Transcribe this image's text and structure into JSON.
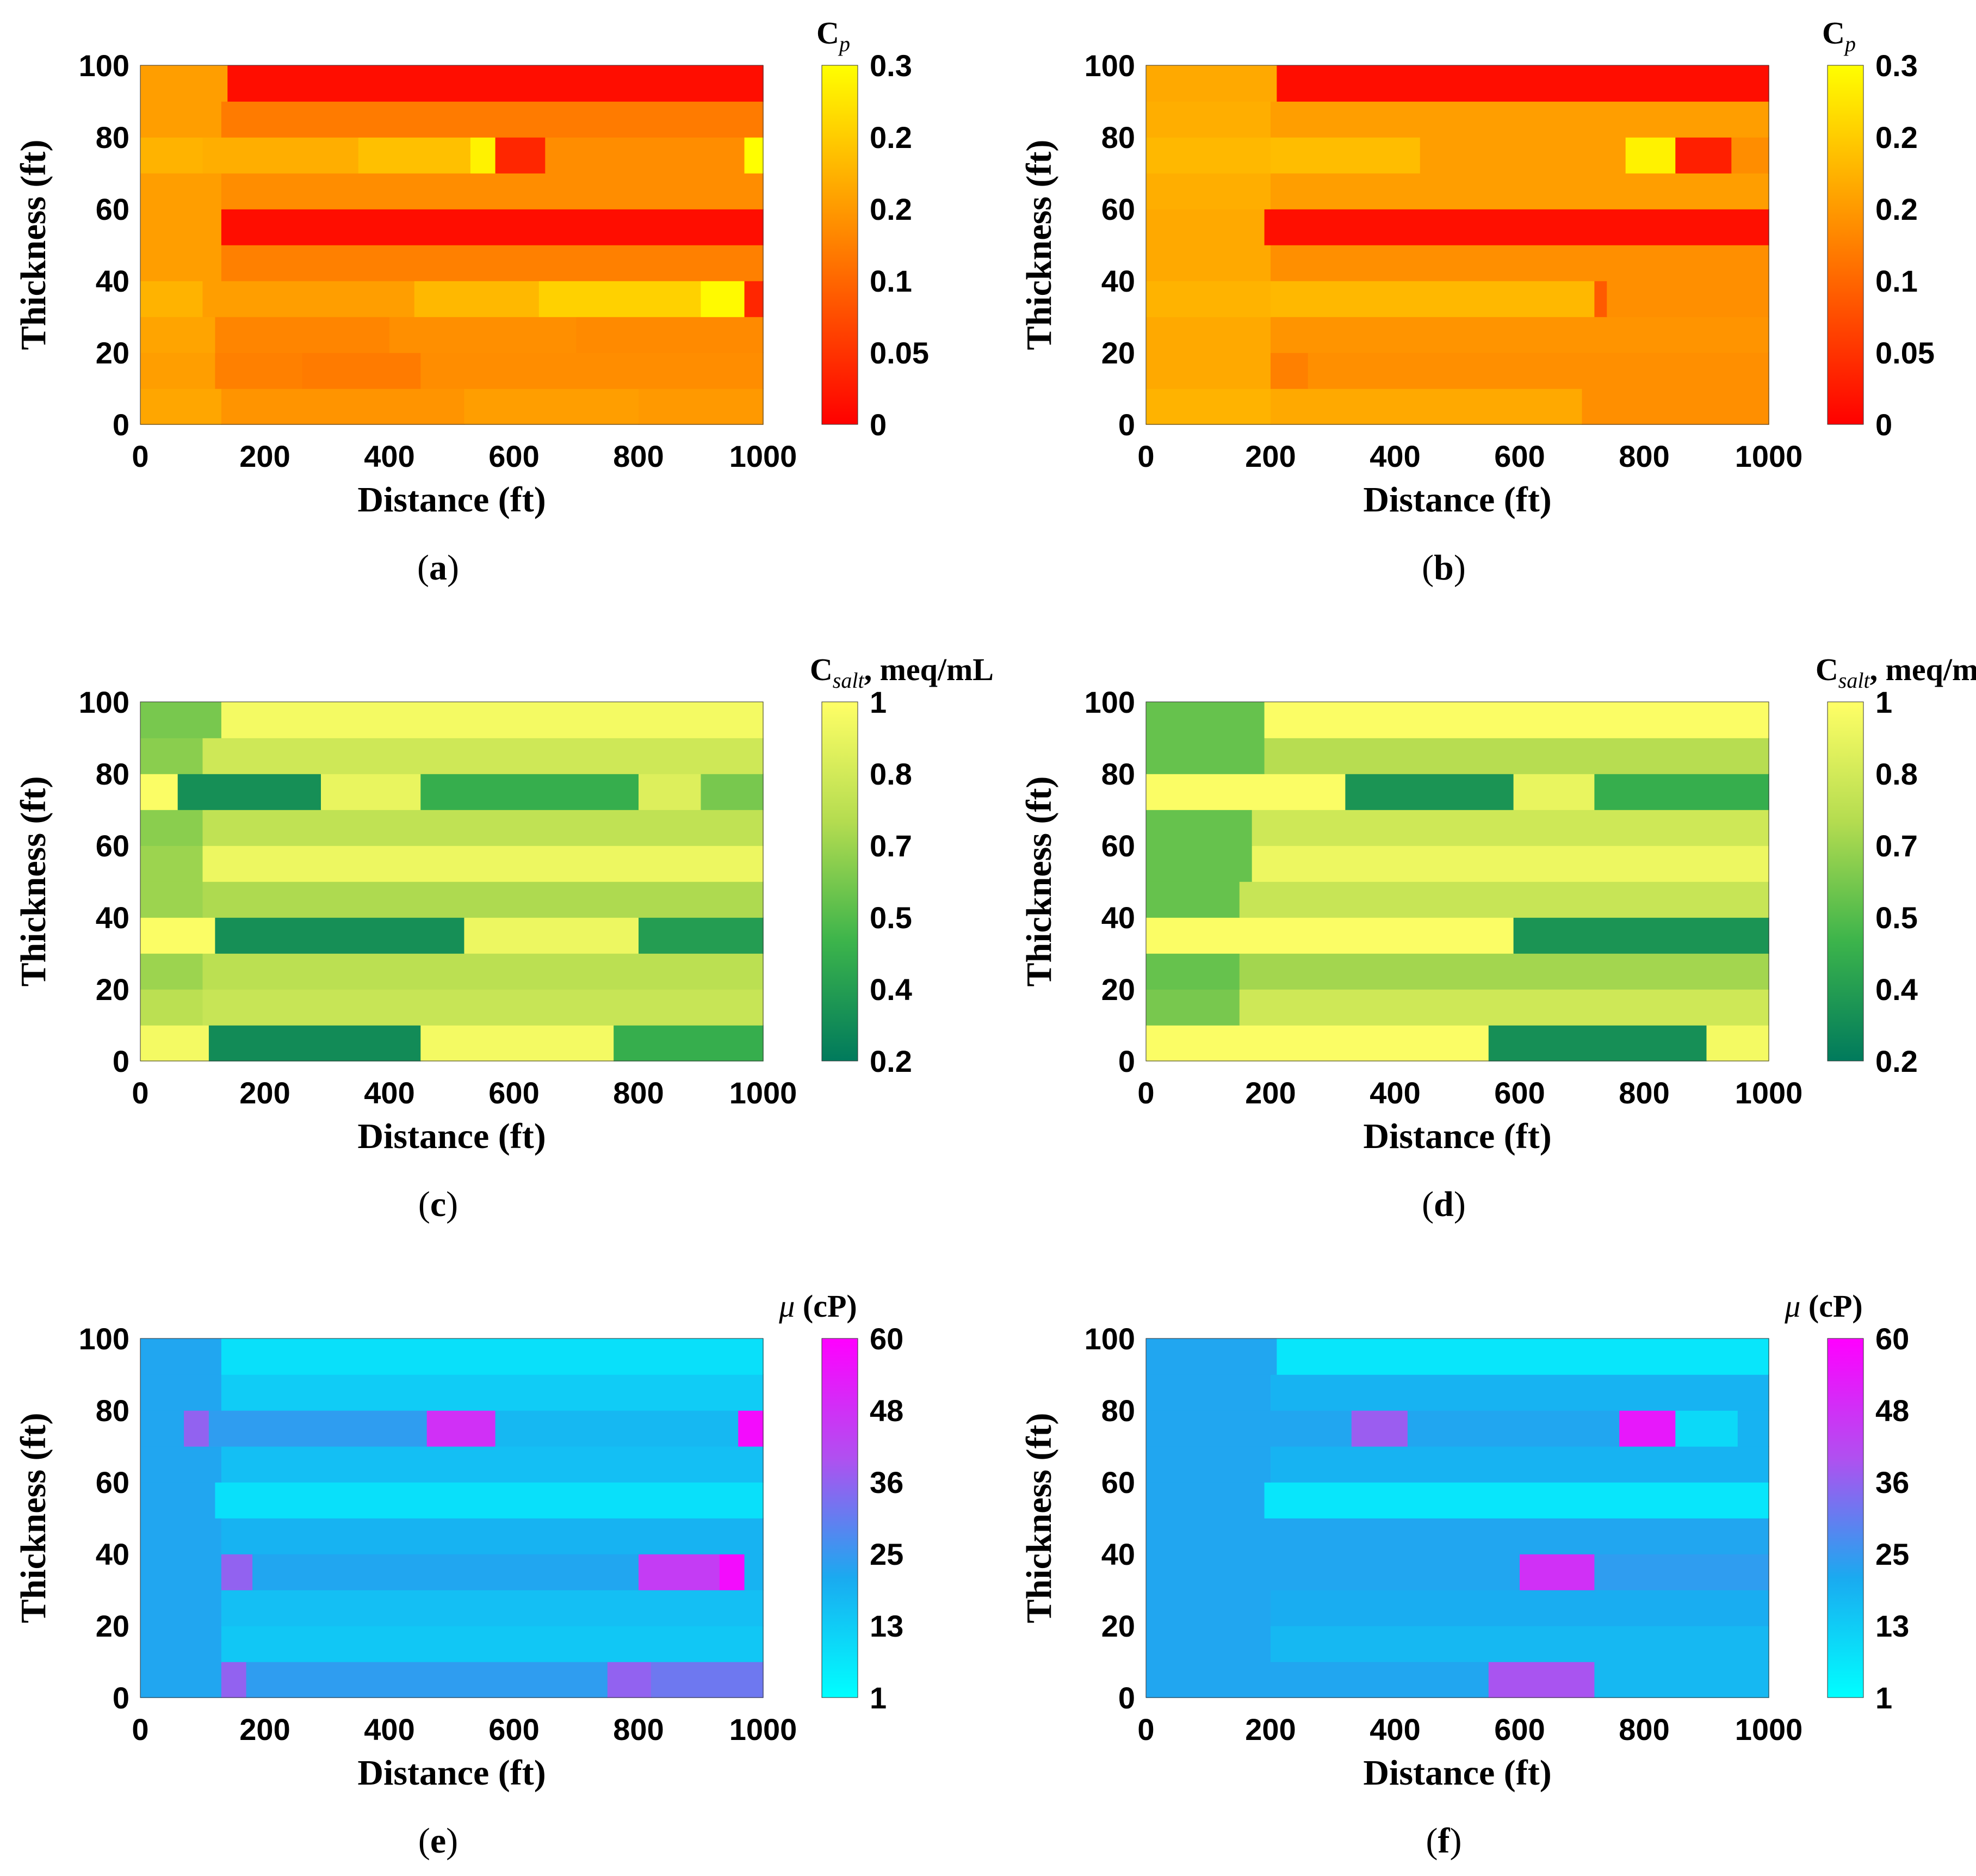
{
  "figure": {
    "panel_count": 6
  },
  "palettes": {
    "cp": [
      "#ff0000",
      "#ff8000",
      "#ffff00"
    ],
    "salt": [
      "#007a5c",
      "#3cb44b",
      "#b4dc50",
      "#ffff66"
    ],
    "mu": [
      "#00ffff",
      "#1aaaf0",
      "#b050f0",
      "#ff00ff"
    ]
  },
  "chart_data": [
    {
      "panel": "a",
      "type": "heatmap",
      "caption": "a",
      "xlabel": "Distance (ft)",
      "ylabel": "Thickness (ft)",
      "xlim": [
        0,
        1000
      ],
      "ylim": [
        0,
        100
      ],
      "xticks": [
        "0",
        "200",
        "400",
        "600",
        "800",
        "1000"
      ],
      "yticks": [
        "0",
        "20",
        "40",
        "60",
        "80",
        "100"
      ],
      "colorbar": {
        "title_main": "C",
        "title_sub": "p",
        "title_tail": "",
        "ticks": [
          "0",
          "0.05",
          "0.1",
          "0.2",
          "0.2",
          "0.3"
        ],
        "palette": "cp"
      },
      "layers": [
        [
          [
            0,
            130,
            0.65
          ],
          [
            130,
            520,
            0.58
          ],
          [
            520,
            800,
            0.62
          ],
          [
            800,
            1000,
            0.6
          ]
        ],
        [
          [
            0,
            120,
            0.62
          ],
          [
            120,
            260,
            0.5
          ],
          [
            260,
            450,
            0.48
          ],
          [
            450,
            1000,
            0.55
          ]
        ],
        [
          [
            0,
            120,
            0.64
          ],
          [
            120,
            400,
            0.52
          ],
          [
            400,
            700,
            0.56
          ],
          [
            700,
            1000,
            0.54
          ]
        ],
        [
          [
            0,
            100,
            0.7
          ],
          [
            100,
            440,
            0.62
          ],
          [
            440,
            640,
            0.72
          ],
          [
            640,
            900,
            0.82
          ],
          [
            900,
            970,
            0.98
          ],
          [
            970,
            1000,
            0.15
          ]
        ],
        [
          [
            0,
            130,
            0.62
          ],
          [
            130,
            1000,
            0.5
          ]
        ],
        [
          [
            0,
            130,
            0.62
          ],
          [
            130,
            1000,
            0.05
          ]
        ],
        [
          [
            0,
            130,
            0.62
          ],
          [
            130,
            1000,
            0.55
          ]
        ],
        [
          [
            0,
            100,
            0.7
          ],
          [
            100,
            350,
            0.68
          ],
          [
            350,
            530,
            0.75
          ],
          [
            530,
            570,
            0.95
          ],
          [
            570,
            650,
            0.15
          ],
          [
            650,
            970,
            0.55
          ],
          [
            970,
            1000,
            1.0
          ]
        ],
        [
          [
            0,
            130,
            0.62
          ],
          [
            130,
            1000,
            0.48
          ]
        ],
        [
          [
            0,
            140,
            0.62
          ],
          [
            140,
            1000,
            0.05
          ]
        ]
      ]
    },
    {
      "panel": "b",
      "type": "heatmap",
      "caption": "b",
      "xlabel": "Distance (ft)",
      "ylabel": "Thickness (ft)",
      "xlim": [
        0,
        1000
      ],
      "ylim": [
        0,
        100
      ],
      "xticks": [
        "0",
        "200",
        "400",
        "600",
        "800",
        "1000"
      ],
      "yticks": [
        "0",
        "20",
        "40",
        "60",
        "80",
        "100"
      ],
      "colorbar": {
        "title_main": "C",
        "title_sub": "p",
        "title_tail": "",
        "ticks": [
          "0",
          "0.05",
          "0.1",
          "0.2",
          "0.2",
          "0.3"
        ],
        "palette": "cp"
      },
      "layers": [
        [
          [
            0,
            200,
            0.7
          ],
          [
            200,
            700,
            0.66
          ],
          [
            700,
            1000,
            0.56
          ]
        ],
        [
          [
            0,
            200,
            0.66
          ],
          [
            200,
            260,
            0.5
          ],
          [
            260,
            1000,
            0.56
          ]
        ],
        [
          [
            0,
            200,
            0.66
          ],
          [
            200,
            1000,
            0.58
          ]
        ],
        [
          [
            0,
            200,
            0.7
          ],
          [
            200,
            720,
            0.72
          ],
          [
            720,
            740,
            0.35
          ],
          [
            740,
            1000,
            0.56
          ]
        ],
        [
          [
            0,
            200,
            0.66
          ],
          [
            200,
            1000,
            0.56
          ]
        ],
        [
          [
            0,
            190,
            0.66
          ],
          [
            190,
            1000,
            0.06
          ]
        ],
        [
          [
            0,
            200,
            0.68
          ],
          [
            200,
            1000,
            0.62
          ]
        ],
        [
          [
            0,
            200,
            0.72
          ],
          [
            200,
            440,
            0.74
          ],
          [
            440,
            770,
            0.62
          ],
          [
            770,
            850,
            0.95
          ],
          [
            850,
            940,
            0.12
          ],
          [
            940,
            1000,
            0.55
          ]
        ],
        [
          [
            0,
            200,
            0.68
          ],
          [
            200,
            1000,
            0.62
          ]
        ],
        [
          [
            0,
            210,
            0.66
          ],
          [
            210,
            1000,
            0.05
          ]
        ]
      ]
    },
    {
      "panel": "c",
      "type": "heatmap",
      "caption": "c",
      "xlabel": "Distance (ft)",
      "ylabel": "Thickness (ft)",
      "xlim": [
        0,
        1000
      ],
      "ylim": [
        0,
        100
      ],
      "xticks": [
        "0",
        "200",
        "400",
        "600",
        "800",
        "1000"
      ],
      "yticks": [
        "0",
        "20",
        "40",
        "60",
        "80",
        "100"
      ],
      "colorbar": {
        "title_main": "C",
        "title_sub": "salt",
        "title_tail": ", meq/mL",
        "ticks": [
          "0.2",
          "0.4",
          "0.5",
          "0.7",
          "0.8",
          "1"
        ],
        "palette": "salt"
      },
      "layers": [
        [
          [
            0,
            110,
            0.95
          ],
          [
            110,
            450,
            0.1
          ],
          [
            450,
            760,
            0.95
          ],
          [
            760,
            1000,
            0.3
          ]
        ],
        [
          [
            0,
            100,
            0.7
          ],
          [
            100,
            1000,
            0.75
          ]
        ],
        [
          [
            0,
            100,
            0.6
          ],
          [
            100,
            1000,
            0.7
          ]
        ],
        [
          [
            0,
            120,
            0.98
          ],
          [
            120,
            520,
            0.12
          ],
          [
            520,
            800,
            0.92
          ],
          [
            800,
            1000,
            0.2
          ]
        ],
        [
          [
            0,
            100,
            0.6
          ],
          [
            100,
            1000,
            0.65
          ]
        ],
        [
          [
            0,
            100,
            0.6
          ],
          [
            100,
            1000,
            0.92
          ]
        ],
        [
          [
            0,
            100,
            0.55
          ],
          [
            100,
            1000,
            0.72
          ]
        ],
        [
          [
            0,
            60,
            0.98
          ],
          [
            60,
            290,
            0.12
          ],
          [
            290,
            450,
            0.9
          ],
          [
            450,
            800,
            0.3
          ],
          [
            800,
            900,
            0.85
          ],
          [
            900,
            1000,
            0.5
          ]
        ],
        [
          [
            0,
            100,
            0.55
          ],
          [
            100,
            1000,
            0.78
          ]
        ],
        [
          [
            0,
            130,
            0.5
          ],
          [
            130,
            1000,
            0.95
          ]
        ]
      ]
    },
    {
      "panel": "d",
      "type": "heatmap",
      "caption": "d",
      "xlabel": "Distance (ft)",
      "ylabel": "Thickness (ft)",
      "xlim": [
        0,
        1000
      ],
      "ylim": [
        0,
        100
      ],
      "xticks": [
        "0",
        "200",
        "400",
        "600",
        "800",
        "1000"
      ],
      "yticks": [
        "0",
        "20",
        "40",
        "60",
        "80",
        "100"
      ],
      "colorbar": {
        "title_main": "C",
        "title_sub": "salt",
        "title_tail": ", meq/mL",
        "ticks": [
          "0.2",
          "0.4",
          "0.5",
          "0.7",
          "0.8",
          "1"
        ],
        "palette": "salt"
      },
      "layers": [
        [
          [
            0,
            550,
            0.98
          ],
          [
            550,
            900,
            0.12
          ],
          [
            900,
            1000,
            0.95
          ]
        ],
        [
          [
            0,
            150,
            0.5
          ],
          [
            150,
            1000,
            0.78
          ]
        ],
        [
          [
            0,
            150,
            0.45
          ],
          [
            150,
            1000,
            0.62
          ]
        ],
        [
          [
            0,
            590,
            0.98
          ],
          [
            590,
            1000,
            0.15
          ]
        ],
        [
          [
            0,
            150,
            0.45
          ],
          [
            150,
            1000,
            0.75
          ]
        ],
        [
          [
            0,
            170,
            0.45
          ],
          [
            170,
            1000,
            0.92
          ]
        ],
        [
          [
            0,
            170,
            0.45
          ],
          [
            170,
            1000,
            0.78
          ]
        ],
        [
          [
            0,
            320,
            0.98
          ],
          [
            320,
            590,
            0.15
          ],
          [
            590,
            720,
            0.9
          ],
          [
            720,
            1000,
            0.3
          ]
        ],
        [
          [
            0,
            190,
            0.45
          ],
          [
            190,
            1000,
            0.68
          ]
        ],
        [
          [
            0,
            190,
            0.45
          ],
          [
            190,
            1000,
            0.98
          ]
        ]
      ]
    },
    {
      "panel": "e",
      "type": "heatmap",
      "caption": "e",
      "xlabel": "Distance (ft)",
      "ylabel": "Thickness (ft)",
      "xlim": [
        0,
        1000
      ],
      "ylim": [
        0,
        100
      ],
      "xticks": [
        "0",
        "200",
        "400",
        "600",
        "800",
        "1000"
      ],
      "yticks": [
        "0",
        "20",
        "40",
        "60",
        "80",
        "100"
      ],
      "colorbar": {
        "title_main": "μ",
        "title_sub": "",
        "title_tail": " (cP)",
        "ticks": [
          "1",
          "13",
          "25",
          "36",
          "48",
          "60"
        ],
        "palette": "mu"
      },
      "layers": [
        [
          [
            0,
            130,
            0.35
          ],
          [
            130,
            170,
            0.6
          ],
          [
            170,
            750,
            0.38
          ],
          [
            750,
            820,
            0.6
          ],
          [
            820,
            1000,
            0.52
          ]
        ],
        [
          [
            0,
            130,
            0.35
          ],
          [
            130,
            1000,
            0.22
          ]
        ],
        [
          [
            0,
            130,
            0.35
          ],
          [
            130,
            1000,
            0.25
          ]
        ],
        [
          [
            0,
            130,
            0.35
          ],
          [
            130,
            180,
            0.6
          ],
          [
            180,
            800,
            0.35
          ],
          [
            800,
            930,
            0.75
          ],
          [
            930,
            970,
            0.95
          ],
          [
            970,
            1000,
            0.3
          ]
        ],
        [
          [
            0,
            130,
            0.35
          ],
          [
            130,
            1000,
            0.3
          ]
        ],
        [
          [
            0,
            120,
            0.35
          ],
          [
            120,
            1000,
            0.12
          ]
        ],
        [
          [
            0,
            130,
            0.35
          ],
          [
            130,
            1000,
            0.25
          ]
        ],
        [
          [
            0,
            70,
            0.35
          ],
          [
            70,
            110,
            0.6
          ],
          [
            110,
            460,
            0.38
          ],
          [
            460,
            570,
            0.8
          ],
          [
            570,
            960,
            0.28
          ],
          [
            960,
            1000,
            0.95
          ]
        ],
        [
          [
            0,
            130,
            0.35
          ],
          [
            130,
            1000,
            0.2
          ]
        ],
        [
          [
            0,
            130,
            0.35
          ],
          [
            130,
            1000,
            0.12
          ]
        ]
      ]
    },
    {
      "panel": "f",
      "type": "heatmap",
      "caption": "f",
      "xlabel": "Distance (ft)",
      "ylabel": "Thickness (ft)",
      "xlim": [
        0,
        1000
      ],
      "ylim": [
        0,
        100
      ],
      "xticks": [
        "0",
        "200",
        "400",
        "600",
        "800",
        "1000"
      ],
      "yticks": [
        "0",
        "20",
        "40",
        "60",
        "80",
        "100"
      ],
      "colorbar": {
        "title_main": "μ",
        "title_sub": "",
        "title_tail": " (cP)",
        "ticks": [
          "1",
          "13",
          "25",
          "36",
          "48",
          "60"
        ],
        "palette": "mu"
      },
      "layers": [
        [
          [
            0,
            550,
            0.35
          ],
          [
            550,
            720,
            0.65
          ],
          [
            720,
            1000,
            0.28
          ]
        ],
        [
          [
            0,
            200,
            0.35
          ],
          [
            200,
            1000,
            0.28
          ]
        ],
        [
          [
            0,
            200,
            0.35
          ],
          [
            200,
            1000,
            0.32
          ]
        ],
        [
          [
            0,
            600,
            0.35
          ],
          [
            600,
            720,
            0.8
          ],
          [
            720,
            1000,
            0.38
          ]
        ],
        [
          [
            0,
            200,
            0.35
          ],
          [
            200,
            1000,
            0.35
          ]
        ],
        [
          [
            0,
            190,
            0.35
          ],
          [
            190,
            1000,
            0.1
          ]
        ],
        [
          [
            0,
            200,
            0.35
          ],
          [
            200,
            1000,
            0.3
          ]
        ],
        [
          [
            0,
            330,
            0.35
          ],
          [
            330,
            420,
            0.62
          ],
          [
            420,
            760,
            0.35
          ],
          [
            760,
            850,
            0.9
          ],
          [
            850,
            950,
            0.15
          ],
          [
            950,
            1000,
            0.3
          ]
        ],
        [
          [
            0,
            200,
            0.35
          ],
          [
            200,
            1000,
            0.3
          ]
        ],
        [
          [
            0,
            210,
            0.35
          ],
          [
            210,
            1000,
            0.1
          ]
        ]
      ]
    }
  ]
}
